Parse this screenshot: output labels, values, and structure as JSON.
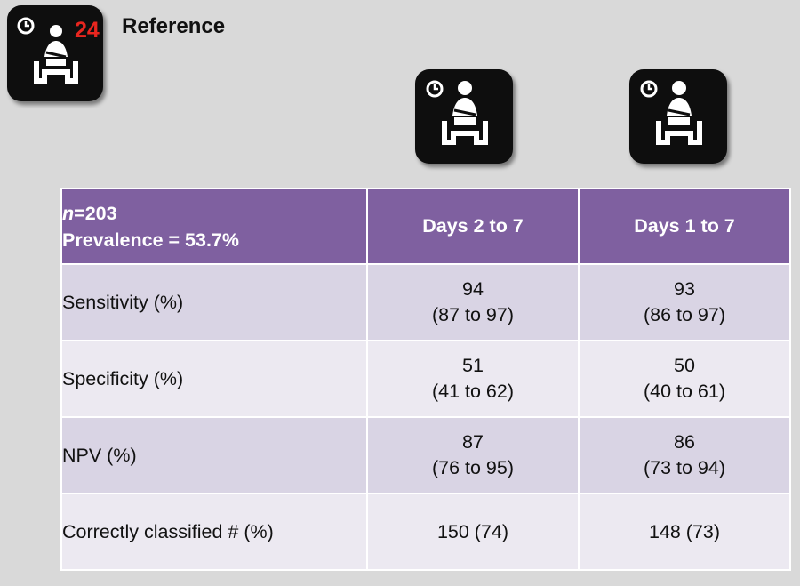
{
  "header": {
    "reference_badge": "24",
    "reference_label": "Reference",
    "icons": [
      "clock-icon",
      "seated-person-icon"
    ]
  },
  "table": {
    "corner": {
      "n_italic": "n",
      "n_value": "=203",
      "prevalence": "Prevalence = 53.7%"
    },
    "columns": [
      "Days 2 to 7",
      "Days 1 to 7"
    ],
    "rows": [
      {
        "label": "Sensitivity (%)",
        "cells": [
          {
            "main": "94",
            "ci": "(87 to 97)"
          },
          {
            "main": "93",
            "ci": "(86 to 97)"
          }
        ]
      },
      {
        "label": "Specificity (%)",
        "cells": [
          {
            "main": "51",
            "ci": "(41 to 62)"
          },
          {
            "main": "50",
            "ci": "(40 to 61)"
          }
        ]
      },
      {
        "label": "NPV (%)",
        "cells": [
          {
            "main": "87",
            "ci": "(76 to 95)"
          },
          {
            "main": "86",
            "ci": "(73 to 94)"
          }
        ]
      },
      {
        "label": "Correctly classified # (%)",
        "cells": [
          {
            "main": "150 (74)",
            "ci": ""
          },
          {
            "main": "148 (73)",
            "ci": ""
          }
        ]
      }
    ]
  },
  "colors": {
    "header_purple": "#7f60a0",
    "row_dark": "#d9d4e4",
    "row_light": "#ece9f1",
    "badge_red": "#e8261f",
    "background": "#d9d9d9"
  }
}
